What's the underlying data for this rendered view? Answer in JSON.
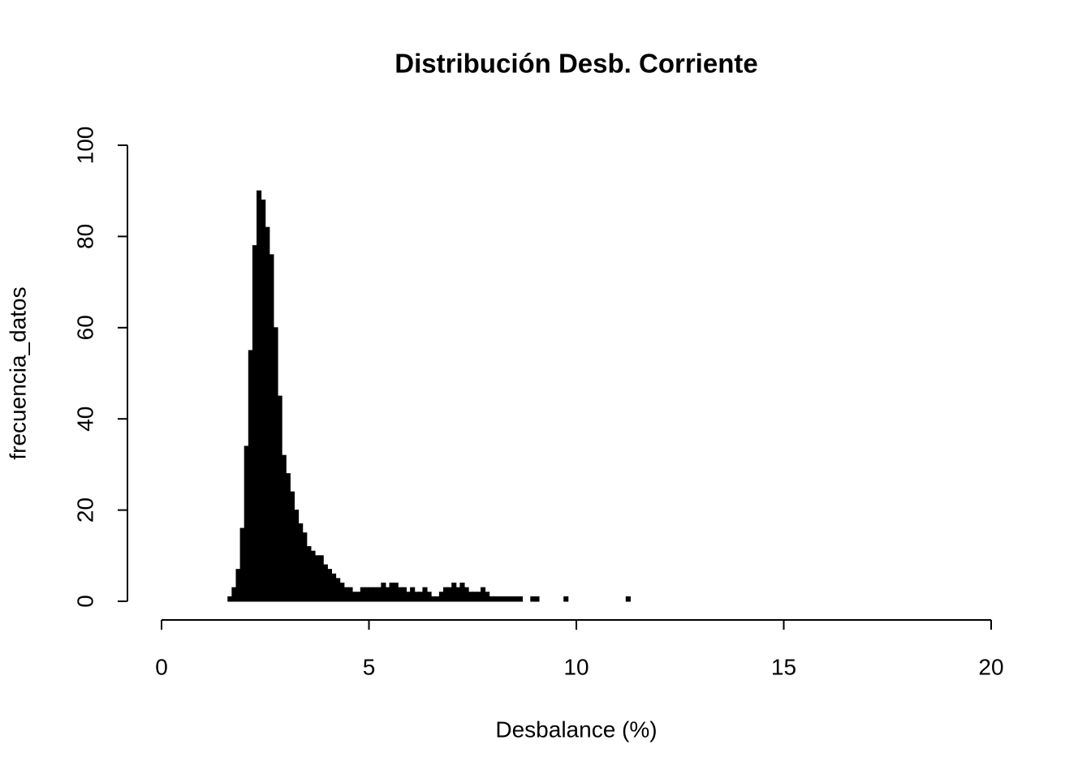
{
  "chart_data": {
    "type": "histogram",
    "title": "Distribución Desb. Corriente",
    "x_label": "Desbalance (%)",
    "y_label": "frecuencia_datos",
    "color": "#000000",
    "bins": [
      1.6,
      1.7,
      1.8,
      1.9,
      2.0,
      2.1,
      2.2,
      2.3,
      2.4,
      2.5,
      2.6,
      2.7,
      2.8,
      2.9,
      3.0,
      3.1,
      3.2,
      3.3,
      3.4,
      3.5,
      3.6,
      3.7,
      3.8,
      3.9,
      4.0,
      4.1,
      4.2,
      4.3,
      4.4,
      4.5,
      4.6,
      4.7,
      4.8,
      4.9,
      5.0,
      5.1,
      5.2,
      5.3,
      5.4,
      5.5,
      5.6,
      5.7,
      5.8,
      5.9,
      6.0,
      6.1,
      6.2,
      6.3,
      6.4,
      6.5,
      6.6,
      6.7,
      6.8,
      6.9,
      7.0,
      7.1,
      7.2,
      7.3,
      7.4,
      7.5,
      7.6,
      7.7,
      7.8,
      7.9,
      8.0,
      8.1,
      8.2,
      8.3,
      8.4,
      8.5,
      8.6,
      8.7,
      8.8,
      8.9,
      9.0,
      9.1,
      9.2,
      9.3,
      9.4,
      9.5,
      9.6,
      9.7,
      9.8,
      9.9,
      10.0,
      10.1,
      10.2,
      10.3,
      10.4,
      10.5,
      10.6,
      10.7,
      10.8,
      10.9,
      11.0,
      11.1,
      11.2,
      11.3
    ],
    "values": [
      1,
      3,
      7,
      16,
      34,
      55,
      78,
      90,
      88,
      82,
      76,
      60,
      45,
      32,
      28,
      24,
      20,
      17,
      15,
      12,
      11,
      10,
      10,
      8,
      7,
      6,
      5,
      4,
      3,
      3,
      2,
      2,
      3,
      3,
      3,
      3,
      3,
      4,
      3,
      4,
      4,
      3,
      3,
      2,
      3,
      2,
      2,
      3,
      2,
      1,
      1,
      2,
      3,
      3,
      4,
      3,
      4,
      3,
      2,
      2,
      2,
      3,
      2,
      1,
      1,
      1,
      1,
      1,
      1,
      1,
      1,
      0,
      0,
      1,
      1,
      0,
      0,
      0,
      0,
      0,
      0,
      1,
      0,
      0,
      0,
      0,
      0,
      0,
      0,
      0,
      0,
      0,
      0,
      0,
      0,
      0,
      1
    ],
    "xlim": [
      0,
      20
    ],
    "xticks": [
      0,
      5,
      10,
      15,
      20
    ],
    "ylim": [
      0,
      100
    ],
    "yticks": [
      0,
      20,
      40,
      60,
      80,
      100
    ]
  }
}
